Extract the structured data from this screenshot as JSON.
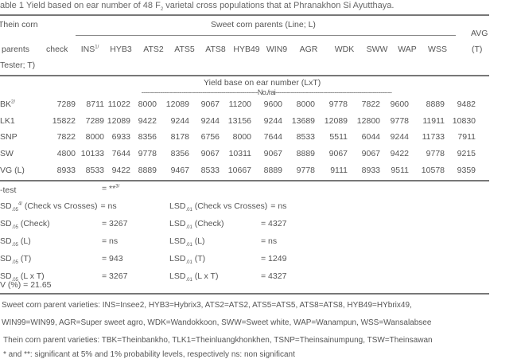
{
  "caption": {
    "prefix": "able 1  Yield based on ear number of 48 F",
    "sub": "2",
    "suffix": " varietal cross populations that at Phranakhon Si Ayutthaya."
  },
  "header": {
    "tester_line1": "Thein corn",
    "tester_line2": "parents",
    "tester_line3": "Tester; T)",
    "check": "check",
    "sweet_group": "Sweet corn parents (Line; L)",
    "lines": [
      "INS",
      "HYB3",
      "ATS2",
      "ATS5",
      "ATS8",
      "HYB49",
      "WIN9",
      "AGR",
      "WDK",
      "SWW",
      "WAP",
      "WSS"
    ],
    "ins_note": "1/",
    "avg_line1": "AVG",
    "avg_line2": "(T)",
    "yield_label": "Yield base on ear number (LxT)",
    "unit": "-------------------------------------------------------------No./rai-------------------------------------------------------------"
  },
  "rows": [
    {
      "label": "BK",
      "note": "2/",
      "values": [
        "7289",
        "8711",
        "11022",
        "8000",
        "12089",
        "9067",
        "11200",
        "9600",
        "8000",
        "9778",
        "7822",
        "9600",
        "8889",
        "9482"
      ]
    },
    {
      "label": "LK1",
      "note": "",
      "values": [
        "15822",
        "7289",
        "12089",
        "9422",
        "9244",
        "9244",
        "13156",
        "9244",
        "13689",
        "12089",
        "12800",
        "9778",
        "11911",
        "10830"
      ]
    },
    {
      "label": "SNP",
      "note": "",
      "values": [
        "7822",
        "8000",
        "6933",
        "8356",
        "8178",
        "6756",
        "8000",
        "7644",
        "8533",
        "5511",
        "6044",
        "9244",
        "11733",
        "7911"
      ]
    },
    {
      "label": "SW",
      "note": "",
      "values": [
        "4800",
        "10133",
        "7644",
        "9778",
        "8356",
        "9067",
        "10311",
        "9067",
        "8889",
        "9067",
        "9067",
        "9422",
        "9778",
        "9215"
      ]
    },
    {
      "label": "VG (L)",
      "note": "",
      "values": [
        "8933",
        "8533",
        "9422",
        "8889",
        "9467",
        "8533",
        "10667",
        "8889",
        "9778",
        "9111",
        "8933",
        "9511",
        "10578",
        "9359"
      ]
    }
  ],
  "stats": {
    "ftest_label": "-test",
    "ftest_value": "= **",
    "ftest_note": "3/",
    "lsd05": [
      {
        "sd": "SD",
        "sub": ".05",
        "sup": "4/",
        "term": " (Check vs Crosses)",
        "value": "= ns"
      },
      {
        "sd": "SD",
        "sub": ".05",
        "sup": "",
        "term": " (Check)",
        "value": "= 3267"
      },
      {
        "sd": "SD",
        "sub": ".05",
        "sup": "",
        "term": " (L)",
        "value": "= ns"
      },
      {
        "sd": "SD",
        "sub": ".05",
        "sup": "",
        "term": " (T)",
        "value": "= 943"
      },
      {
        "sd": "SD",
        "sub": ".05",
        "sup": "",
        "term": " (L x T)",
        "value": "= 3267"
      }
    ],
    "lsd01": [
      {
        "sd": "LSD",
        "sub": ".01",
        "term": " (Check vs Crosses)",
        "value": "= ns"
      },
      {
        "sd": "LSD",
        "sub": ".01",
        "term": " (Check)",
        "value": "= 4327"
      },
      {
        "sd": "LSD",
        "sub": ".01",
        "term": " (L)",
        "value": "= ns"
      },
      {
        "sd": "LSD",
        "sub": ".01",
        "term": " (T)",
        "value": "= 1249"
      },
      {
        "sd": "LSD",
        "sub": ".01",
        "term": " (L x T)",
        "value": "= 4327"
      }
    ],
    "cv": "V (%) =  21.65"
  },
  "footnotes": [
    "Sweet corn parent varieties: INS=Insee2, HYB3=Hybrix3, ATS2=ATS2, ATS5=ATS5, ATS8=ATS8, HYB49=HYbrix49,",
    "WIN99=WIN99, AGR=Super sweet agro, WDK=Wandokkoon, SWW=Sweet white, WAP=Wanampun, WSS=Wansalabsee",
    "Thein corn parent varieties: TBK=Theinbankho, TLK1=Theinluangkhonkhen, TSNP=Theinsainumpung, TSW=Theinsawan",
    "* and **: significant at 5% and 1% probability levels, respectively     ns: non significant"
  ]
}
